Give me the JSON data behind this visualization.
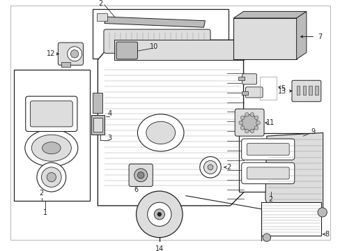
{
  "bg_color": "#ffffff",
  "lc": "#222222",
  "gray1": "#888888",
  "gray2": "#bbbbbb",
  "gray3": "#dddddd",
  "figsize": [
    4.89,
    3.6
  ],
  "dpi": 100
}
